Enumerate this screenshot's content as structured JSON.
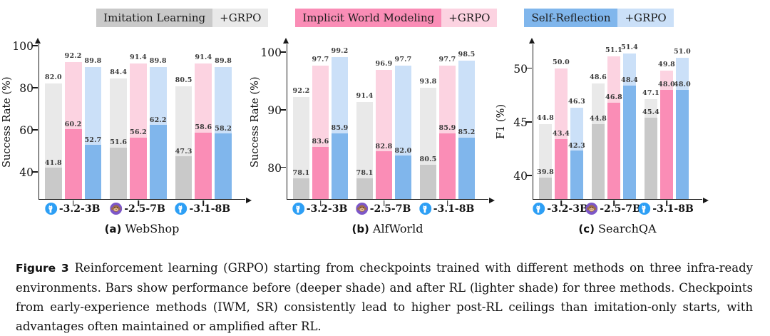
{
  "legend": {
    "items": [
      {
        "label": "Imitation Learning",
        "grpo_label": "+GRPO",
        "color_before": "#c9c9c9",
        "color_after": "#e9e9e9"
      },
      {
        "label": "Implicit World Modeling",
        "grpo_label": "+GRPO",
        "color_before": "#fa8db6",
        "color_after": "#fcd3e1"
      },
      {
        "label": "Self-Reflection",
        "grpo_label": "+GRPO",
        "color_before": "#80b6ec",
        "color_after": "#cbe0f8"
      }
    ]
  },
  "chart_data": [
    {
      "type": "bar",
      "panel_label": "(a)",
      "title": "WebShop",
      "ylabel": "Success Rate (%)",
      "ymin": 27,
      "ymax": 101,
      "yticks": [
        40,
        60,
        80,
        100
      ],
      "legend_position": "top",
      "grid": false,
      "categories": [
        {
          "icon": "llama-icon",
          "label": "-3.2-3B"
        },
        {
          "icon": "qwen-monkey-icon",
          "label": "-2.5-7B"
        },
        {
          "icon": "llama-icon",
          "label": "-3.1-8B"
        }
      ],
      "series": [
        {
          "name": "Imitation Learning",
          "before": [
            41.8,
            51.6,
            47.3
          ],
          "after": [
            82.0,
            84.4,
            80.5
          ]
        },
        {
          "name": "Implicit World Modeling",
          "before": [
            60.2,
            56.2,
            58.6
          ],
          "after": [
            92.2,
            91.4,
            91.4
          ]
        },
        {
          "name": "Self-Reflection",
          "before": [
            52.7,
            62.2,
            58.2
          ],
          "after": [
            89.8,
            89.8,
            89.8
          ]
        }
      ]
    },
    {
      "type": "bar",
      "panel_label": "(b)",
      "title": "AlfWorld",
      "ylabel": "Success Rate (%)",
      "ymin": 74.5,
      "ymax": 101.5,
      "yticks": [
        80,
        90,
        100
      ],
      "legend_position": "top",
      "grid": false,
      "categories": [
        {
          "icon": "llama-icon",
          "label": "-3.2-3B"
        },
        {
          "icon": "qwen-monkey-icon",
          "label": "-2.5-7B"
        },
        {
          "icon": "llama-icon",
          "label": "-3.1-8B"
        }
      ],
      "series": [
        {
          "name": "Imitation Learning",
          "before": [
            78.1,
            78.1,
            80.5
          ],
          "after": [
            92.2,
            91.4,
            93.8
          ]
        },
        {
          "name": "Implicit World Modeling",
          "before": [
            83.6,
            82.8,
            85.9
          ],
          "after": [
            97.7,
            96.9,
            97.7
          ]
        },
        {
          "name": "Self-Reflection",
          "before": [
            85.9,
            82.0,
            85.2
          ],
          "after": [
            99.2,
            97.7,
            98.5
          ]
        }
      ]
    },
    {
      "type": "bar",
      "panel_label": "(c)",
      "title": "SearchQA",
      "ylabel": "F1 (%)",
      "ymin": 37.8,
      "ymax": 52.3,
      "yticks": [
        40,
        45,
        50
      ],
      "legend_position": "top",
      "grid": false,
      "categories": [
        {
          "icon": "llama-icon",
          "label": "-3.2-3B"
        },
        {
          "icon": "qwen-monkey-icon",
          "label": "-2.5-7B"
        },
        {
          "icon": "llama-icon",
          "label": "-3.1-8B"
        }
      ],
      "series": [
        {
          "name": "Imitation Learning",
          "before": [
            39.8,
            44.8,
            45.4
          ],
          "after": [
            44.8,
            48.6,
            47.1
          ]
        },
        {
          "name": "Implicit World Modeling",
          "before": [
            43.4,
            46.8,
            48.0
          ],
          "after": [
            50.0,
            51.1,
            49.8
          ]
        },
        {
          "name": "Self-Reflection",
          "before": [
            42.3,
            48.4,
            48.0
          ],
          "after": [
            46.3,
            51.4,
            51.0
          ]
        }
      ]
    }
  ],
  "caption": {
    "label": "Figure 3",
    "text": "Reinforcement learning (GRPO) starting from checkpoints trained with different methods on three infra-ready environments. Bars show performance before (deeper shade) and after RL (lighter shade) for three methods. Checkpoints from early-experience methods (IWM, SR) consistently lead to higher post-RL ceilings than imitation-only starts, with advantages often maintained or amplified after RL."
  }
}
